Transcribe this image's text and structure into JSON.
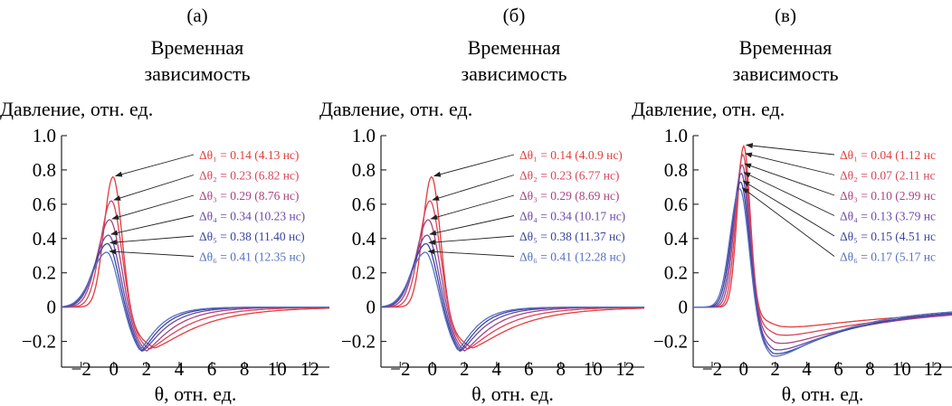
{
  "colors": {
    "axis": "#222222",
    "arrow": "#222222",
    "series": [
      "#e63a3a",
      "#d9445a",
      "#a8447f",
      "#6a4aa6",
      "#3a44a0",
      "#5470c0"
    ]
  },
  "chart_data": [
    {
      "type": "line",
      "panel_label": "(а)",
      "title": "Временная зависимость",
      "ylabel": "Давление, отн. ед.",
      "xlabel": "θ, отн. ед.",
      "xlim": [
        -3.2,
        13.2
      ],
      "ylim": [
        -0.35,
        1.0
      ],
      "xticks": [
        -2,
        0,
        2,
        4,
        6,
        8,
        10,
        12
      ],
      "yticks": [
        1.0,
        0.8,
        0.6,
        0.4,
        0.2,
        0,
        -0.2
      ],
      "series": [
        {
          "label": "Δθ₁ = 0.14",
          "extra": " (4.13 нс)",
          "peak": 0.76,
          "tpeak": -0.05,
          "min": -0.3,
          "tmin": 2.5,
          "decay": 2.8
        },
        {
          "label": "Δθ₂ = 0.23",
          "extra": " (6.82 нс)",
          "peak": 0.62,
          "tpeak": -0.15,
          "min": -0.31,
          "tmin": 2.2,
          "decay": 2.2
        },
        {
          "label": "Δθ₃ = 0.29",
          "extra": " (8.76 нс)",
          "peak": 0.51,
          "tpeak": -0.25,
          "min": -0.33,
          "tmin": 2.0,
          "decay": 1.7
        },
        {
          "label": "Δθ₄ = 0.34",
          "extra": " (10.23 нс)",
          "peak": 0.42,
          "tpeak": -0.32,
          "min": -0.34,
          "tmin": 1.8,
          "decay": 1.4
        },
        {
          "label": "Δθ₅ = 0.38",
          "extra": " (11.40 нс)",
          "peak": 0.37,
          "tpeak": -0.38,
          "min": -0.35,
          "tmin": 1.7,
          "decay": 1.2
        },
        {
          "label": "Δθ₆ = 0.41",
          "extra": " (12.35 нс)",
          "peak": 0.32,
          "tpeak": -0.42,
          "min": -0.35,
          "tmin": 1.6,
          "decay": 1.1
        }
      ]
    },
    {
      "type": "line",
      "panel_label": "(б)",
      "title": "Временная зависимость",
      "ylabel": "Давление, отн. ед.",
      "xlabel": "θ, отн. ед.",
      "xlim": [
        -3.2,
        13.2
      ],
      "ylim": [
        -0.35,
        1.0
      ],
      "xticks": [
        -2,
        0,
        2,
        4,
        6,
        8,
        10,
        12
      ],
      "yticks": [
        1.0,
        0.8,
        0.6,
        0.4,
        0.2,
        0,
        -0.2
      ],
      "series": [
        {
          "label": "Δθ₁ = 0.14",
          "extra": " (4.0.9 нс)",
          "peak": 0.76,
          "tpeak": -0.05,
          "min": -0.3,
          "tmin": 2.5,
          "decay": 2.8
        },
        {
          "label": "Δθ₂ = 0.23",
          "extra": " (6.77 нс)",
          "peak": 0.62,
          "tpeak": -0.15,
          "min": -0.31,
          "tmin": 2.2,
          "decay": 2.2
        },
        {
          "label": "Δθ₃ = 0.29",
          "extra": " (8.69 нс)",
          "peak": 0.51,
          "tpeak": -0.25,
          "min": -0.33,
          "tmin": 2.0,
          "decay": 1.7
        },
        {
          "label": "Δθ₄ = 0.34",
          "extra": " (10.17 нс)",
          "peak": 0.42,
          "tpeak": -0.32,
          "min": -0.34,
          "tmin": 1.8,
          "decay": 1.4
        },
        {
          "label": "Δθ₅ = 0.38",
          "extra": " (11.37 нс)",
          "peak": 0.37,
          "tpeak": -0.38,
          "min": -0.35,
          "tmin": 1.7,
          "decay": 1.2
        },
        {
          "label": "Δθ₆ = 0.41",
          "extra": " (12.28 нс)",
          "peak": 0.32,
          "tpeak": -0.42,
          "min": -0.35,
          "tmin": 1.6,
          "decay": 1.1
        }
      ]
    },
    {
      "type": "line",
      "panel_label": "(в)",
      "title": "Временная зависимость",
      "ylabel": "Давление, отн. ед.",
      "xlabel": "θ, отн. ед.",
      "xlim": [
        -3.2,
        13.2
      ],
      "ylim": [
        -0.35,
        1.0
      ],
      "xticks": [
        -2,
        0,
        2,
        4,
        6,
        8,
        10,
        12
      ],
      "yticks": [
        1.0,
        0.8,
        0.6,
        0.4,
        0.2,
        0,
        -0.2
      ],
      "series": [
        {
          "label": "Δθ₁ = 0.04",
          "extra": " (1.12 нс",
          "peak": 0.94,
          "tpeak": 0.0,
          "min": -0.14,
          "tmin": 2.3,
          "decay": 9.0
        },
        {
          "label": "Δθ₂ = 0.07",
          "extra": " (2.11 нс",
          "peak": 0.89,
          "tpeak": -0.05,
          "min": -0.2,
          "tmin": 2.1,
          "decay": 7.5
        },
        {
          "label": "Δθ₃ = 0.10",
          "extra": " (2.99 нс",
          "peak": 0.83,
          "tpeak": -0.1,
          "min": -0.26,
          "tmin": 2.0,
          "decay": 6.5
        },
        {
          "label": "Δθ₄ = 0.13",
          "extra": " (3.79 нс",
          "peak": 0.78,
          "tpeak": -0.15,
          "min": -0.31,
          "tmin": 1.9,
          "decay": 5.5
        },
        {
          "label": "Δθ₅ = 0.15",
          "extra": " (4.51 нс",
          "peak": 0.73,
          "tpeak": -0.2,
          "min": -0.34,
          "tmin": 1.85,
          "decay": 5.0
        },
        {
          "label": "Δθ₆ = 0.17",
          "extra": " (5.17 нс",
          "peak": 0.69,
          "tpeak": -0.25,
          "min": -0.36,
          "tmin": 1.8,
          "decay": 4.5
        }
      ]
    }
  ]
}
